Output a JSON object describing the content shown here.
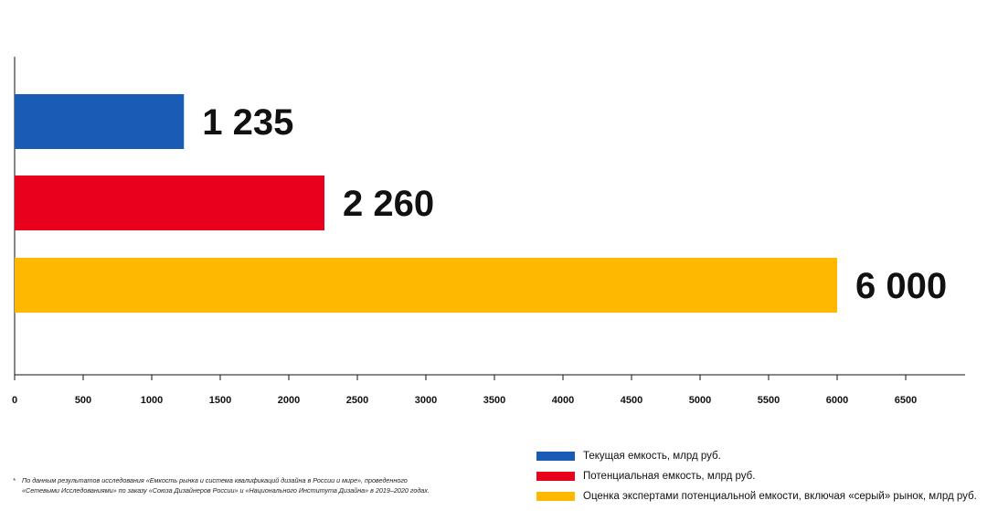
{
  "chart_data": {
    "type": "bar",
    "orientation": "horizontal",
    "xlim": [
      0,
      7000
    ],
    "x_ticks": [
      "0",
      "500",
      "1000",
      "1500",
      "2000",
      "2500",
      "3000",
      "3500",
      "4000",
      "4500",
      "5000",
      "5500",
      "6000",
      "6500"
    ],
    "x_tick_values": [
      0,
      500,
      1000,
      1500,
      2000,
      2500,
      3000,
      3500,
      4000,
      4500,
      5000,
      5500,
      6000,
      6500
    ],
    "bars": [
      {
        "name": "Текущая емкость, млрд руб.",
        "value": 1235,
        "label": "1 235",
        "color": "#1a5bb5"
      },
      {
        "name": "Потенциальная емкость, млрд руб.",
        "value": 2260,
        "label": "2 260",
        "color": "#e8001c"
      },
      {
        "name": "Оценка экспертами потенциальной емкости, включая «серый» рынок, млрд руб.",
        "value": 6000,
        "label": "6 000",
        "color": "#ffb800"
      }
    ],
    "legend_position": "bottom-right"
  },
  "footnote": {
    "marker": "*",
    "line1": "По данным результатов исследования «Емкость рынка и система квалификаций дизайна в России и мире», проведенного",
    "line2": "«Сетевыми Исследованиями» по заказу «Союза Дизайнеров России» и «Национального Института Дизайна» в 2019–2020 годах."
  }
}
